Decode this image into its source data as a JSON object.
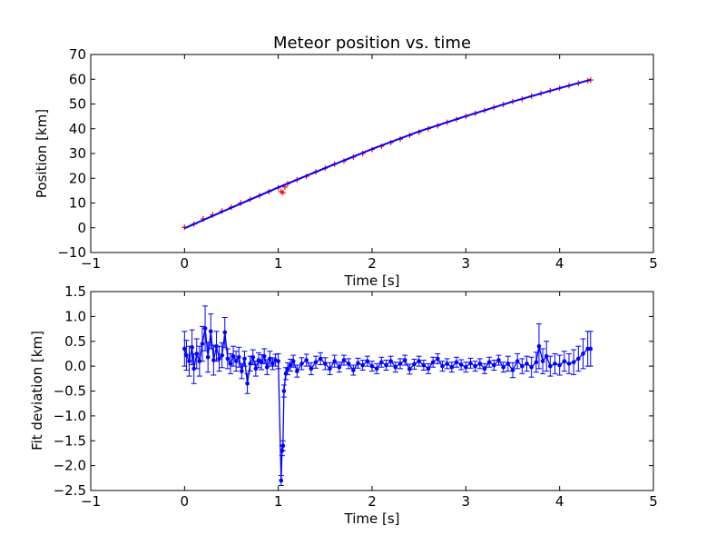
{
  "figure": {
    "colors": {
      "points": "#ff0000",
      "fit": "#0000ff",
      "axes": "#000000",
      "background": "#ffffff"
    }
  },
  "chart_data": [
    {
      "type": "scatter",
      "title": "Meteor position vs. time",
      "xlabel": "Time [s]",
      "ylabel": "Position [km]",
      "xlim": [
        -1,
        5
      ],
      "ylim": [
        -10,
        70
      ],
      "xticks": [
        "−1",
        "0",
        "1",
        "2",
        "3",
        "4",
        "5"
      ],
      "yticks": [
        "−10",
        "0",
        "10",
        "20",
        "30",
        "40",
        "50",
        "60",
        "70"
      ],
      "grid": false,
      "series": [
        {
          "style": "points",
          "color": "#ff0000",
          "marker": "+",
          "x": [
            0.0,
            0.1,
            0.2,
            0.3,
            0.4,
            0.5,
            0.6,
            0.7,
            0.8,
            0.9,
            1.0,
            1.03,
            1.05,
            1.07,
            1.1,
            1.2,
            1.3,
            1.4,
            1.5,
            1.6,
            1.7,
            1.8,
            1.9,
            2.0,
            2.1,
            2.2,
            2.3,
            2.4,
            2.5,
            2.6,
            2.7,
            2.8,
            2.9,
            3.0,
            3.1,
            3.2,
            3.3,
            3.4,
            3.5,
            3.6,
            3.7,
            3.8,
            3.9,
            4.0,
            4.1,
            4.2,
            4.3,
            4.33
          ],
          "y": [
            0.2,
            1.5,
            3.6,
            5.2,
            6.8,
            8.3,
            10.0,
            11.5,
            13.0,
            14.6,
            16.2,
            14.6,
            14.2,
            16.5,
            17.8,
            19.4,
            20.8,
            22.6,
            24.1,
            25.7,
            27.0,
            28.6,
            30.0,
            31.6,
            32.9,
            34.4,
            35.8,
            37.3,
            38.6,
            40.0,
            41.2,
            42.6,
            43.8,
            45.0,
            46.2,
            47.4,
            48.6,
            49.8,
            51.0,
            52.0,
            53.2,
            54.3,
            55.4,
            56.4,
            57.4,
            58.4,
            59.4,
            59.7
          ]
        },
        {
          "style": "line",
          "color": "#0000ff",
          "x": [
            0.0,
            0.5,
            1.0,
            1.5,
            2.0,
            2.5,
            3.0,
            3.5,
            4.0,
            4.33
          ],
          "y": [
            -0.2,
            8.1,
            16.3,
            24.1,
            31.8,
            38.9,
            45.1,
            51.0,
            56.4,
            59.8
          ]
        }
      ]
    },
    {
      "type": "line",
      "xlabel": "Time [s]",
      "ylabel": "Fit deviation [km]",
      "xlim": [
        -1,
        5
      ],
      "ylim": [
        -2.5,
        1.5
      ],
      "xticks": [
        "−1",
        "0",
        "1",
        "2",
        "3",
        "4",
        "5"
      ],
      "yticks": [
        "−2.5",
        "−2.0",
        "−1.5",
        "−1.0",
        "−0.5",
        "0.0",
        "0.5",
        "1.0",
        "1.5"
      ],
      "grid": false,
      "series": [
        {
          "style": "errorbar-line",
          "color": "#0000ff",
          "x": [
            0.0,
            0.02,
            0.05,
            0.08,
            0.1,
            0.13,
            0.16,
            0.19,
            0.22,
            0.25,
            0.28,
            0.31,
            0.34,
            0.37,
            0.4,
            0.43,
            0.46,
            0.49,
            0.52,
            0.55,
            0.58,
            0.61,
            0.64,
            0.67,
            0.7,
            0.73,
            0.76,
            0.79,
            0.82,
            0.85,
            0.88,
            0.91,
            0.94,
            0.97,
            1.0,
            1.03,
            1.04,
            1.05,
            1.06,
            1.08,
            1.1,
            1.13,
            1.16,
            1.2,
            1.25,
            1.3,
            1.35,
            1.4,
            1.45,
            1.5,
            1.55,
            1.6,
            1.65,
            1.7,
            1.75,
            1.8,
            1.85,
            1.9,
            1.95,
            2.0,
            2.05,
            2.1,
            2.15,
            2.2,
            2.25,
            2.3,
            2.35,
            2.4,
            2.45,
            2.5,
            2.55,
            2.6,
            2.65,
            2.7,
            2.75,
            2.8,
            2.85,
            2.9,
            2.95,
            3.0,
            3.05,
            3.1,
            3.15,
            3.2,
            3.25,
            3.3,
            3.35,
            3.4,
            3.45,
            3.5,
            3.55,
            3.6,
            3.65,
            3.7,
            3.75,
            3.78,
            3.82,
            3.86,
            3.9,
            3.95,
            4.0,
            4.05,
            4.1,
            4.15,
            4.2,
            4.25,
            4.3,
            4.33
          ],
          "y": [
            0.35,
            0.22,
            0.1,
            0.38,
            -0.05,
            0.25,
            0.1,
            0.45,
            0.76,
            0.18,
            0.7,
            0.12,
            0.4,
            0.15,
            0.22,
            0.68,
            0.15,
            0.05,
            0.2,
            0.1,
            0.18,
            -0.1,
            0.15,
            -0.35,
            0.05,
            0.18,
            -0.05,
            0.12,
            0.08,
            0.2,
            -0.02,
            0.15,
            0.05,
            0.12,
            0.1,
            -2.3,
            -1.7,
            -1.6,
            -0.5,
            -0.15,
            -0.05,
            0.02,
            0.1,
            -0.1,
            0.05,
            0.12,
            -0.05,
            0.08,
            0.15,
            0.05,
            -0.05,
            0.1,
            -0.02,
            0.12,
            0.05,
            -0.08,
            0.06,
            0.02,
            0.1,
            0.0,
            -0.05,
            0.08,
            0.02,
            0.1,
            -0.02,
            0.05,
            0.12,
            -0.06,
            0.04,
            0.1,
            0.02,
            -0.05,
            0.08,
            0.15,
            0.0,
            0.05,
            -0.02,
            0.08,
            0.03,
            -0.02,
            0.06,
            0.0,
            0.05,
            -0.05,
            0.08,
            0.02,
            0.12,
            -0.02,
            0.05,
            -0.08,
            0.1,
            0.0,
            0.05,
            -0.02,
            0.08,
            0.4,
            0.1,
            0.2,
            0.0,
            0.05,
            0.02,
            0.1,
            0.05,
            0.08,
            0.15,
            0.25,
            0.35,
            0.35
          ],
          "error": [
            0.35,
            0.3,
            0.3,
            0.35,
            0.3,
            0.3,
            0.3,
            0.35,
            0.45,
            0.3,
            0.35,
            0.3,
            0.3,
            0.25,
            0.25,
            0.3,
            0.2,
            0.2,
            0.2,
            0.2,
            0.2,
            0.15,
            0.15,
            0.2,
            0.15,
            0.15,
            0.15,
            0.15,
            0.15,
            0.15,
            0.15,
            0.15,
            0.12,
            0.12,
            0.15,
            0.1,
            0.1,
            0.1,
            0.12,
            0.12,
            0.12,
            0.12,
            0.12,
            0.12,
            0.12,
            0.12,
            0.12,
            0.12,
            0.12,
            0.12,
            0.12,
            0.12,
            0.1,
            0.1,
            0.1,
            0.1,
            0.1,
            0.1,
            0.1,
            0.1,
            0.1,
            0.1,
            0.1,
            0.1,
            0.1,
            0.1,
            0.1,
            0.1,
            0.1,
            0.1,
            0.1,
            0.1,
            0.1,
            0.1,
            0.1,
            0.1,
            0.1,
            0.1,
            0.1,
            0.1,
            0.1,
            0.1,
            0.1,
            0.1,
            0.1,
            0.1,
            0.1,
            0.1,
            0.15,
            0.15,
            0.15,
            0.15,
            0.15,
            0.2,
            0.2,
            0.45,
            0.25,
            0.3,
            0.2,
            0.2,
            0.2,
            0.2,
            0.2,
            0.25,
            0.25,
            0.3,
            0.35,
            0.35
          ]
        }
      ]
    }
  ]
}
